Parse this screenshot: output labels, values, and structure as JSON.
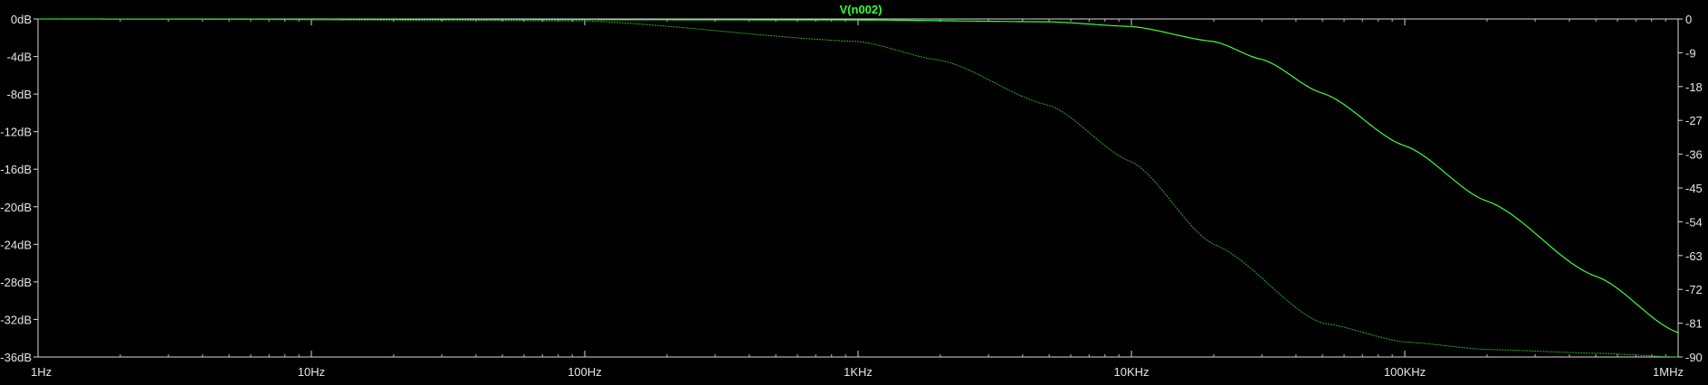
{
  "chart_data": {
    "type": "line",
    "title": "V(n002)",
    "xlabel": "",
    "ylabel": "",
    "x_scale": "log",
    "xlim": [
      1,
      1000000
    ],
    "ylim": [
      -36,
      0
    ],
    "y2lim": [
      -90,
      0
    ],
    "grid": false,
    "x_tick_labels": [
      "1Hz",
      "10Hz",
      "100Hz",
      "1KHz",
      "10KHz",
      "100KHz",
      "1MHz"
    ],
    "y_tick_labels": [
      "0dB",
      "-4dB",
      "-8dB",
      "-12dB",
      "-16dB",
      "-20dB",
      "-24dB",
      "-28dB",
      "-32dB",
      "-36dB"
    ],
    "y2_tick_labels": [
      "0",
      "-9",
      "-18",
      "-27",
      "-36",
      "-45",
      "-54",
      "-63",
      "-72",
      "-81",
      "-90"
    ],
    "series": [
      {
        "name": "",
        "axis": "left",
        "unit": "dB",
        "color": "#3cff3c",
        "x": [
          1,
          1000,
          5000,
          10000,
          20000,
          30000,
          50000,
          100000,
          200000,
          500000,
          1000000
        ],
        "y": [
          0,
          -0.1,
          -0.3,
          -0.8,
          -2.4,
          -4.3,
          -7.9,
          -13.5,
          -19.4,
          -27.4,
          -33.4
        ]
      },
      {
        "name": "",
        "axis": "right",
        "unit": "degrees",
        "color": "#2fa82f",
        "x": [
          1,
          100,
          1000,
          2000,
          5000,
          10000,
          20000,
          50000,
          100000,
          200000,
          500000,
          1000000
        ],
        "y": [
          0,
          -0.5,
          -6,
          -11,
          -23,
          -38,
          -60,
          -81,
          -86,
          -88,
          -89,
          -90
        ]
      }
    ]
  }
}
